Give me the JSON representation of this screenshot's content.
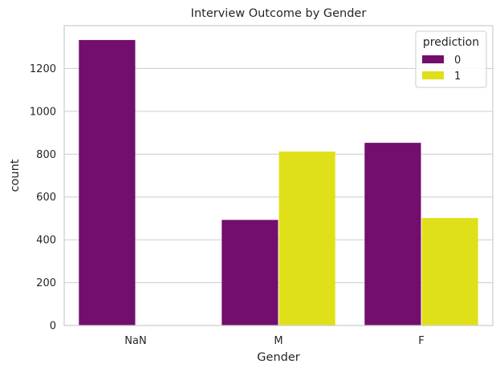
{
  "chart_data": {
    "type": "bar",
    "title": "Interview Outcome by Gender",
    "xlabel": "Gender",
    "ylabel": "count",
    "categories": [
      "NaN",
      "M",
      "F"
    ],
    "series": [
      {
        "name": "0",
        "values": [
          1333,
          493,
          853
        ]
      },
      {
        "name": "1",
        "values": [
          0,
          812,
          502
        ]
      }
    ],
    "yticks": [
      0,
      200,
      400,
      600,
      800,
      1000,
      1200
    ],
    "ylim": [
      0,
      1400
    ],
    "grid": "horizontal",
    "legend": {
      "title": "prediction",
      "placement": "top-right"
    },
    "colors": {
      "series_0": "#720e6e",
      "series_1": "#e0e01a",
      "grid": "#cccccc",
      "axes_edge": "#cccccc"
    }
  }
}
